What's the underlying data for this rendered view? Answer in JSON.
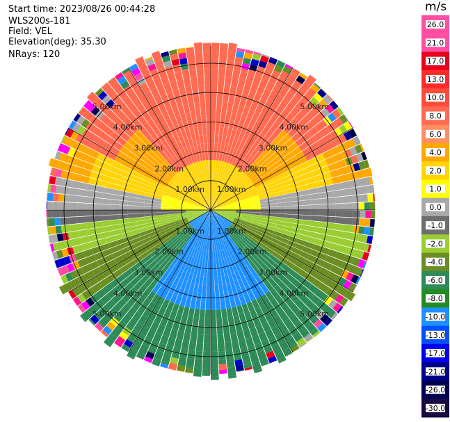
{
  "header": {
    "start_time": "Start time: 2023/08/26 00:44:28",
    "instrument": "WLS200s-181",
    "field": "Field: VEL",
    "elevation": "Elevation(deg): 35.30",
    "nrays": "NRays: 120"
  },
  "range_rings": {
    "labels": [
      "1.00km",
      "2.00km",
      "3.00km",
      "4.00km",
      "5.00km"
    ],
    "distances_km": [
      1,
      2,
      3,
      4,
      5
    ]
  },
  "colorbar": {
    "unit": "m/s",
    "ticks": [
      "26.0",
      "21.0",
      "17.0",
      "13.0",
      "10.0",
      "8.0",
      "6.0",
      "4.0",
      "2.0",
      "1.0",
      "0.0",
      "-1.0",
      "-2.0",
      "-4.0",
      "-6.0",
      "-8.0",
      "-10.0",
      "-13.0",
      "-17.0",
      "-21.0",
      "-26.0",
      "-30.0"
    ],
    "colors": [
      "#ff4fa4",
      "#ff4fa4",
      "#e8001c",
      "#ff2b2b",
      "#ff4b3a",
      "#ff6a50",
      "#ff8f62",
      "#ffa800",
      "#ffd400",
      "#ffff00",
      "#a8a8a8",
      "#6e6e6e",
      "#9acd32",
      "#6b8e23",
      "#2e8b57",
      "#228b22",
      "#1e90ff",
      "#0050ff",
      "#0000ee",
      "#00008b",
      "#000050",
      "#1a0a40"
    ]
  },
  "chart_data": {
    "type": "polar",
    "field": "VEL",
    "elevation_deg": 35.3,
    "n_rays": 120,
    "max_range_km": 5.6,
    "pattern_note": "",
    "ring_spacing_km": 1
  }
}
